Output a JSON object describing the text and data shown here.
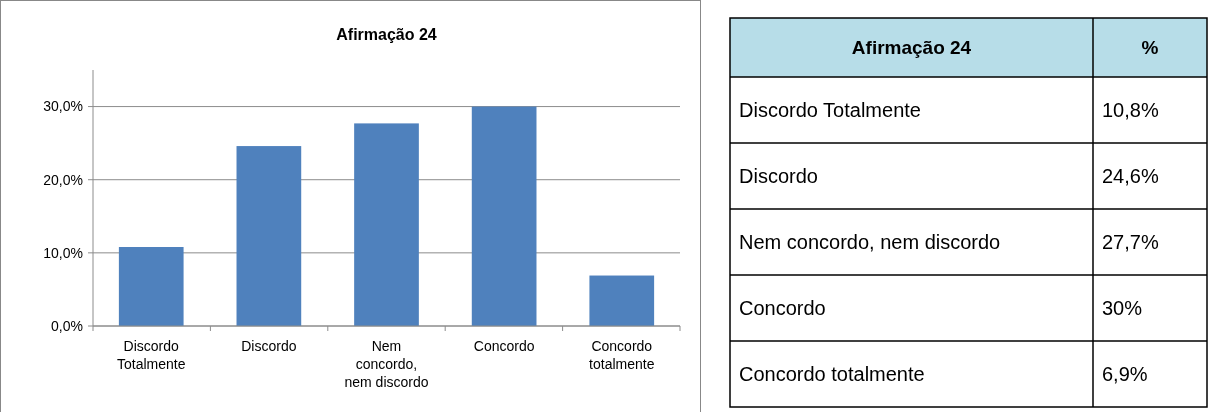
{
  "chart_data": [
    {
      "type": "bar",
      "title": "Afirmação 24",
      "categories": [
        "Discordo Totalmente",
        "Discordo",
        "Nem concordo, nem discordo",
        "Concordo",
        "Concordo totalmente"
      ],
      "values": [
        10.8,
        24.6,
        27.7,
        30,
        6.9
      ],
      "color": "#4f81bd",
      "ylim": [
        0,
        35
      ],
      "yticks": [
        {
          "value": 0,
          "label": "0,0%"
        },
        {
          "value": 10,
          "label": "10,0%"
        },
        {
          "value": 20,
          "label": "20,0%"
        },
        {
          "value": 30,
          "label": "30,0%"
        }
      ],
      "grid": "y"
    },
    {
      "type": "other",
      "title": "Afirmação 24",
      "annotations": [
        "%",
        "Discordo Totalmente",
        "10,8%",
        "Discordo",
        "24,6%",
        "Nem concordo, nem discordo",
        "27,7%",
        "Concordo",
        "30%",
        "Concordo totalmente",
        "6,9%"
      ]
    }
  ]
}
